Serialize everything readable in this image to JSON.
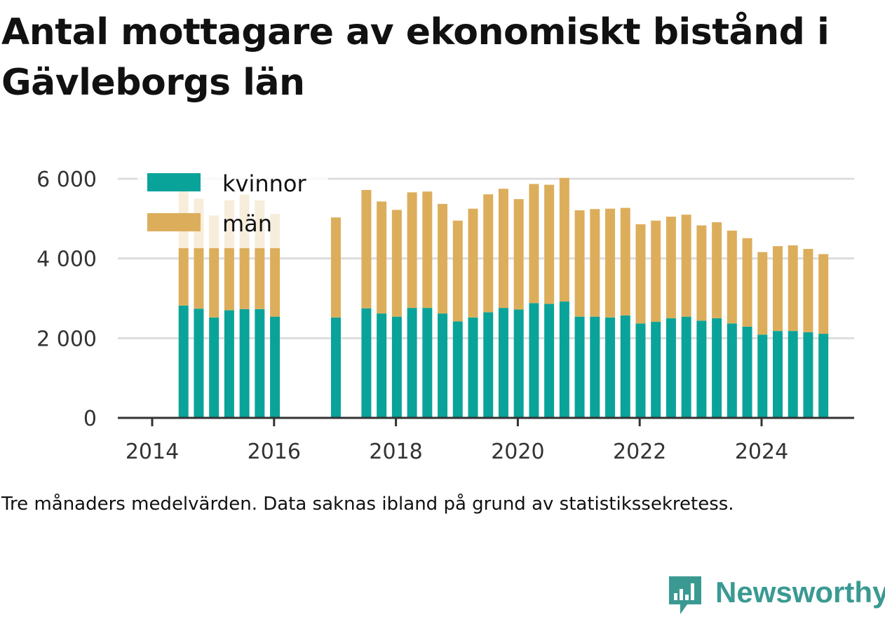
{
  "chart_data": {
    "type": "bar",
    "stacked": true,
    "title": "Antal mottagare av ekonomiskt bistånd i Gävleborgs län",
    "note": "Tre månaders medelvärden. Data saknas ibland på grund av statistikssekretess.",
    "x_ticks": [
      "2014",
      "2016",
      "2018",
      "2020",
      "2022",
      "2024"
    ],
    "y_ticks": [
      "0",
      "2 000",
      "4 000",
      "6 000"
    ],
    "ylim": [
      0,
      6000
    ],
    "legend_position": "top-left",
    "grid": true,
    "x": [
      "2014-Q2",
      "2014-Q3",
      "2014-Q4",
      "2015-Q1",
      "2015-Q2",
      "2015-Q3",
      "2015-Q4",
      "2016-Q1",
      "2016-Q2",
      "2016-Q3",
      "2016-Q4",
      "2017-Q1",
      "2017-Q2",
      "2017-Q3",
      "2017-Q4",
      "2018-Q1",
      "2018-Q2",
      "2018-Q3",
      "2018-Q4",
      "2019-Q1",
      "2019-Q2",
      "2019-Q3",
      "2019-Q4",
      "2020-Q1",
      "2020-Q2",
      "2020-Q3",
      "2020-Q4",
      "2021-Q1",
      "2021-Q2",
      "2021-Q3",
      "2021-Q4",
      "2022-Q1",
      "2022-Q2",
      "2022-Q3",
      "2022-Q4",
      "2023-Q1",
      "2023-Q2",
      "2023-Q3",
      "2023-Q4",
      "2024-Q1",
      "2024-Q2",
      "2024-Q3",
      "2024-Q4"
    ],
    "series": [
      {
        "name": "kvinnor",
        "color": "#0aa39a",
        "values": [
          2820,
          2740,
          2520,
          2700,
          2730,
          2730,
          2540,
          null,
          null,
          null,
          2520,
          null,
          2750,
          2620,
          2540,
          2760,
          2760,
          2620,
          2420,
          2520,
          2650,
          2760,
          2720,
          2880,
          2860,
          2920,
          2540,
          2540,
          2520,
          2570,
          2370,
          2410,
          2500,
          2540,
          2440,
          2500,
          2370,
          2290,
          2090,
          2180,
          2180,
          2150,
          2110
        ]
      },
      {
        "name": "män",
        "color": "#dcae5c",
        "values": [
          2880,
          2760,
          2560,
          2760,
          2870,
          2730,
          2580,
          null,
          null,
          null,
          2510,
          null,
          2970,
          2810,
          2680,
          2900,
          2920,
          2750,
          2530,
          2730,
          2960,
          2990,
          2770,
          2990,
          2990,
          3100,
          2670,
          2700,
          2730,
          2700,
          2490,
          2540,
          2550,
          2560,
          2390,
          2410,
          2330,
          2220,
          2070,
          2130,
          2150,
          2090,
          2000
        ]
      }
    ]
  },
  "brand": {
    "name": "Newsworthy"
  }
}
